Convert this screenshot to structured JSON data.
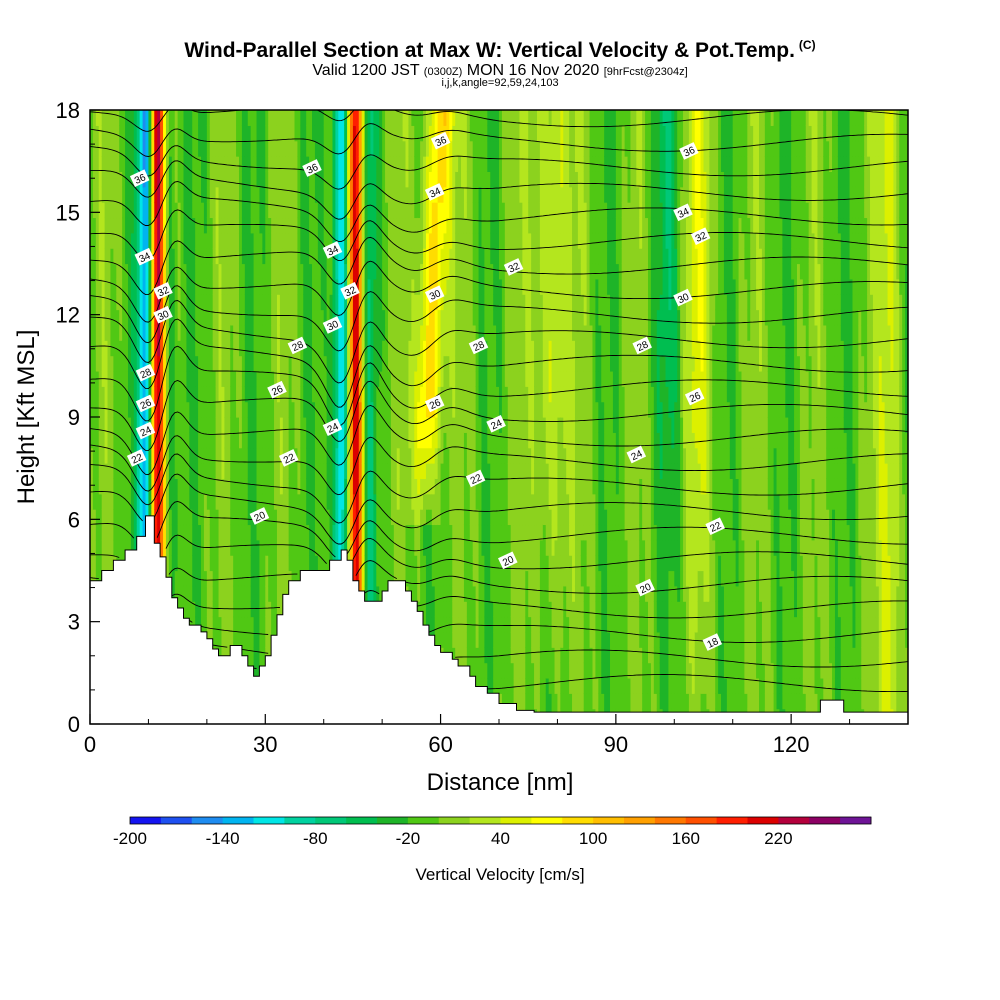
{
  "header": {
    "title": "Wind-Parallel Section at Max W: Vertical Velocity & Pot.Temp.",
    "title_mark": "(C)",
    "subtitle_a": "Valid 1200 JST",
    "subtitle_b": "(0300Z)",
    "subtitle_c": "MON 16 Nov 2020",
    "subtitle_d": "[9hrFcst@2304z]",
    "params": "i,j,k,angle=92,59,24,103"
  },
  "chart_data": {
    "type": "heatmap",
    "title": "Wind-Parallel Section at Max W: Vertical Velocity & Pot.Temp.",
    "xlabel": "Distance [nm]",
    "ylabel": "Height [Kft MSL]",
    "xlim": [
      0,
      140
    ],
    "ylim": [
      0,
      18
    ],
    "xticks": [
      0,
      30,
      60,
      90,
      120
    ],
    "yticks": [
      0,
      3,
      6,
      9,
      12,
      15,
      18
    ],
    "colorbar": {
      "label": "Vertical Velocity [cm/s]",
      "levels_min": -200,
      "levels_max": 260,
      "step": 20,
      "tick_labels": [
        "-200",
        "-140",
        "-80",
        "-20",
        "40",
        "100",
        "160",
        "220"
      ],
      "tick_values": [
        -200,
        -140,
        -80,
        -20,
        40,
        100,
        160,
        220
      ],
      "colors": [
        "#1414f0",
        "#1e50f0",
        "#1e8cf0",
        "#00b4f0",
        "#00e6e6",
        "#00d2a0",
        "#00c878",
        "#00be50",
        "#1eb428",
        "#50c814",
        "#8cd21e",
        "#b4e61e",
        "#dcf000",
        "#ffff00",
        "#ffdc00",
        "#ffbe00",
        "#ffa000",
        "#ff7800",
        "#ff5000",
        "#ff1e00",
        "#dc0000",
        "#b4003c",
        "#8c0064",
        "#6e1496"
      ]
    },
    "terrain": [
      [
        0,
        4.2
      ],
      [
        2,
        4.2
      ],
      [
        2,
        4.5
      ],
      [
        4,
        4.5
      ],
      [
        4,
        4.8
      ],
      [
        6,
        4.8
      ],
      [
        6,
        5.1
      ],
      [
        8,
        5.1
      ],
      [
        8,
        5.5
      ],
      [
        9.5,
        5.5
      ],
      [
        9.5,
        6.1
      ],
      [
        11,
        6.1
      ],
      [
        11,
        5.3
      ],
      [
        12,
        5.3
      ],
      [
        12,
        4.9
      ],
      [
        13,
        4.9
      ],
      [
        13,
        4.3
      ],
      [
        14,
        4.3
      ],
      [
        14,
        3.7
      ],
      [
        15,
        3.7
      ],
      [
        15,
        3.4
      ],
      [
        16,
        3.4
      ],
      [
        16,
        3.1
      ],
      [
        17,
        3.1
      ],
      [
        17,
        2.9
      ],
      [
        19,
        2.9
      ],
      [
        19,
        2.7
      ],
      [
        20,
        2.7
      ],
      [
        20,
        2.5
      ],
      [
        21,
        2.5
      ],
      [
        21,
        2.2
      ],
      [
        22,
        2.2
      ],
      [
        22,
        2.0
      ],
      [
        24,
        2.0
      ],
      [
        24,
        2.3
      ],
      [
        26,
        2.3
      ],
      [
        26,
        2.0
      ],
      [
        27,
        2.0
      ],
      [
        27,
        1.7
      ],
      [
        28,
        1.7
      ],
      [
        28,
        1.4
      ],
      [
        29,
        1.4
      ],
      [
        29,
        1.7
      ],
      [
        30,
        1.7
      ],
      [
        30,
        2.0
      ],
      [
        31,
        2.0
      ],
      [
        31,
        2.6
      ],
      [
        32,
        2.6
      ],
      [
        32,
        3.2
      ],
      [
        33,
        3.2
      ],
      [
        33,
        3.8
      ],
      [
        34,
        3.8
      ],
      [
        34,
        4.2
      ],
      [
        36,
        4.2
      ],
      [
        36,
        4.5
      ],
      [
        41,
        4.5
      ],
      [
        41,
        4.8
      ],
      [
        43,
        4.8
      ],
      [
        43,
        5.1
      ],
      [
        44,
        5.1
      ],
      [
        44,
        4.8
      ],
      [
        45,
        4.8
      ],
      [
        45,
        4.2
      ],
      [
        46,
        4.2
      ],
      [
        46,
        3.9
      ],
      [
        47,
        3.9
      ],
      [
        47,
        3.6
      ],
      [
        50,
        3.6
      ],
      [
        50,
        3.9
      ],
      [
        51,
        3.9
      ],
      [
        51,
        4.2
      ],
      [
        54,
        4.2
      ],
      [
        54,
        3.9
      ],
      [
        55,
        3.9
      ],
      [
        55,
        3.6
      ],
      [
        56,
        3.6
      ],
      [
        56,
        3.3
      ],
      [
        57,
        3.3
      ],
      [
        57,
        2.9
      ],
      [
        58,
        2.9
      ],
      [
        58,
        2.6
      ],
      [
        59,
        2.6
      ],
      [
        59,
        2.3
      ],
      [
        60,
        2.3
      ],
      [
        60,
        2.1
      ],
      [
        62,
        2.1
      ],
      [
        62,
        1.9
      ],
      [
        63,
        1.9
      ],
      [
        63,
        1.7
      ],
      [
        65,
        1.7
      ],
      [
        65,
        1.4
      ],
      [
        66,
        1.4
      ],
      [
        66,
        1.1
      ],
      [
        68,
        1.1
      ],
      [
        68,
        0.9
      ],
      [
        70,
        0.9
      ],
      [
        70,
        0.6
      ],
      [
        73,
        0.6
      ],
      [
        73,
        0.4
      ],
      [
        76,
        0.4
      ],
      [
        76,
        0.35
      ],
      [
        125,
        0.35
      ],
      [
        125,
        0.7
      ],
      [
        129,
        0.7
      ],
      [
        129,
        0.35
      ],
      [
        140,
        0.35
      ]
    ],
    "theta_labels": [
      {
        "x": 8,
        "y": 7.8,
        "t": "22"
      },
      {
        "x": 9.5,
        "y": 8.6,
        "t": "24"
      },
      {
        "x": 9.5,
        "y": 9.4,
        "t": "26"
      },
      {
        "x": 9.5,
        "y": 10.3,
        "t": "28"
      },
      {
        "x": 12.5,
        "y": 12.0,
        "t": "30"
      },
      {
        "x": 12.5,
        "y": 12.7,
        "t": "32"
      },
      {
        "x": 9.3,
        "y": 13.7,
        "t": "34"
      },
      {
        "x": 8.5,
        "y": 16.0,
        "t": "36"
      },
      {
        "x": 29,
        "y": 6.1,
        "t": "20"
      },
      {
        "x": 34,
        "y": 7.8,
        "t": "22"
      },
      {
        "x": 41.5,
        "y": 8.7,
        "t": "24"
      },
      {
        "x": 32,
        "y": 9.8,
        "t": "26"
      },
      {
        "x": 35.5,
        "y": 11.1,
        "t": "28"
      },
      {
        "x": 41.5,
        "y": 11.7,
        "t": "30"
      },
      {
        "x": 44.5,
        "y": 12.7,
        "t": "32"
      },
      {
        "x": 41.5,
        "y": 13.9,
        "t": "34"
      },
      {
        "x": 38,
        "y": 16.3,
        "t": "36"
      },
      {
        "x": 71.5,
        "y": 4.8,
        "t": "20"
      },
      {
        "x": 66,
        "y": 7.2,
        "t": "22"
      },
      {
        "x": 69.5,
        "y": 8.8,
        "t": "24"
      },
      {
        "x": 59,
        "y": 9.4,
        "t": "26"
      },
      {
        "x": 66.5,
        "y": 11.1,
        "t": "28"
      },
      {
        "x": 59,
        "y": 12.6,
        "t": "30"
      },
      {
        "x": 72.5,
        "y": 13.4,
        "t": "32"
      },
      {
        "x": 59,
        "y": 15.6,
        "t": "34"
      },
      {
        "x": 60,
        "y": 17.1,
        "t": "36"
      },
      {
        "x": 95,
        "y": 4.0,
        "t": "20"
      },
      {
        "x": 106.5,
        "y": 2.4,
        "t": "18"
      },
      {
        "x": 107,
        "y": 5.8,
        "t": "22"
      },
      {
        "x": 93.5,
        "y": 7.9,
        "t": "24"
      },
      {
        "x": 103.5,
        "y": 9.6,
        "t": "26"
      },
      {
        "x": 94.5,
        "y": 11.1,
        "t": "28"
      },
      {
        "x": 101.5,
        "y": 12.5,
        "t": "30"
      },
      {
        "x": 104.5,
        "y": 14.3,
        "t": "32"
      },
      {
        "x": 101.5,
        "y": 15.0,
        "t": "34"
      },
      {
        "x": 102.5,
        "y": 16.8,
        "t": "36"
      }
    ]
  }
}
